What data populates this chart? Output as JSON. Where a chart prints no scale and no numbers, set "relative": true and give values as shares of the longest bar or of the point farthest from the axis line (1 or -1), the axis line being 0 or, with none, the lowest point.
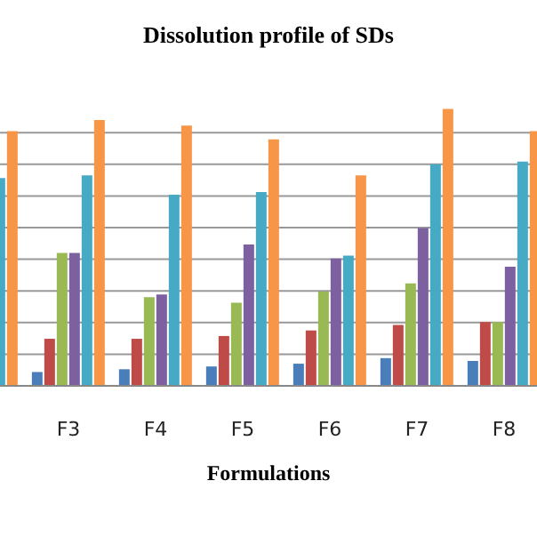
{
  "chart_data": {
    "type": "bar",
    "title": "Dissolution profile of SDs",
    "xlabel": "Formulations",
    "relative": true,
    "grid": "y",
    "categories": [
      null,
      "F3",
      "F4",
      "F5",
      "F6",
      "F7",
      "F8"
    ],
    "series": [
      {
        "color": "#4a7ebb",
        "values": [
          null,
          0.05,
          0.06,
          0.07,
          0.08,
          0.1,
          0.09
        ]
      },
      {
        "color": "#be4b48",
        "values": [
          null,
          0.17,
          0.17,
          0.18,
          0.2,
          0.22,
          0.23
        ]
      },
      {
        "color": "#98b954",
        "values": [
          null,
          0.48,
          0.32,
          0.3,
          0.34,
          0.37,
          0.23
        ]
      },
      {
        "color": "#7d60a0",
        "values": [
          null,
          0.48,
          0.33,
          0.51,
          0.46,
          0.57,
          0.43
        ]
      },
      {
        "color": "#46aac5",
        "values": [
          0.75,
          0.76,
          0.69,
          0.7,
          0.47,
          0.8,
          0.81
        ]
      },
      {
        "color": "#f79646",
        "values": [
          0.92,
          0.96,
          0.94,
          0.89,
          0.76,
          1,
          0.92
        ]
      }
    ]
  }
}
